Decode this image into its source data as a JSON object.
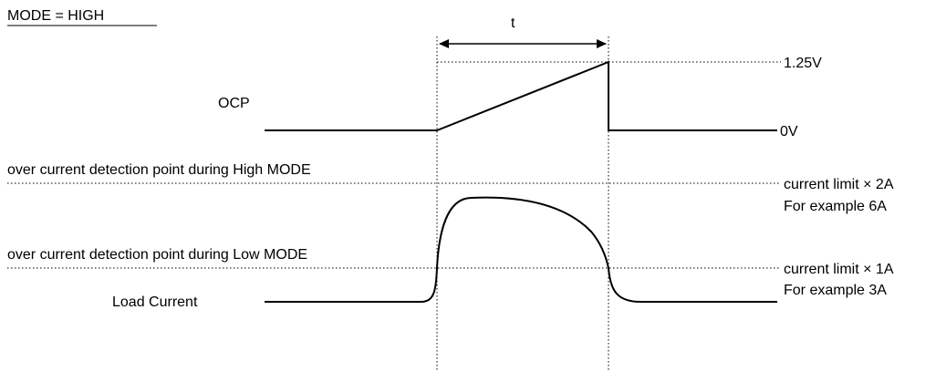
{
  "title": "MODE = HIGH",
  "signals": {
    "ocp": "OCP",
    "load_current": "Load Current"
  },
  "interval_label": "t",
  "levels": {
    "ocp_high": "1.25V",
    "ocp_low": "0V"
  },
  "thresholds": {
    "high_mode": {
      "caption": "over current detection point during High MODE",
      "limit": "current limit × 2A",
      "example": "For example 6A"
    },
    "low_mode": {
      "caption": "over current detection point during Low MODE",
      "limit": "current limit × 1A",
      "example": "For example 3A"
    }
  }
}
